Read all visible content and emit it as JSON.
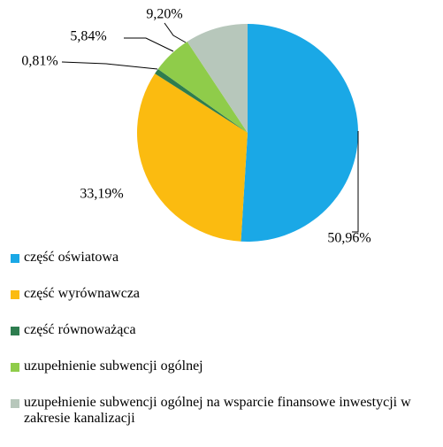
{
  "chart_data": {
    "type": "pie",
    "categories": [
      "część oświatowa",
      "część wyrównawcza",
      "część równoważąca",
      "uzupełnienie subwencji ogólnej",
      "uzupełnienie subwencji ogólnej na wsparcie finansowe inwestycji w zakresie kanalizacji"
    ],
    "values": [
      50.96,
      33.19,
      0.81,
      5.84,
      9.2
    ],
    "value_labels": [
      "50,96%",
      "33,19%",
      "0,81%",
      "5,84%",
      "9,20%"
    ],
    "colors": [
      "#1aa8e6",
      "#fbbb10",
      "#2e7d4f",
      "#8fcc4a",
      "#b7c7bb"
    ]
  }
}
